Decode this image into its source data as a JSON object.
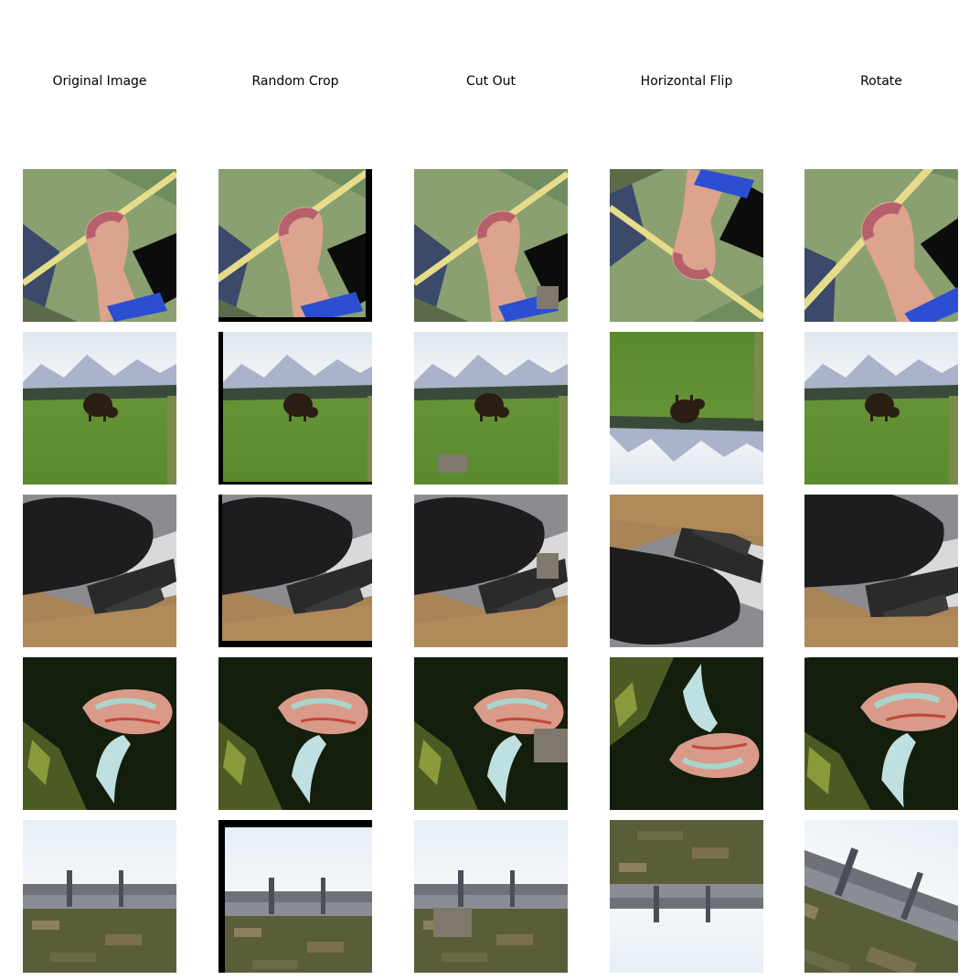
{
  "figure": {
    "columns": [
      {
        "title": "Original Image"
      },
      {
        "title": "Random Crop"
      },
      {
        "title": "Cut Out"
      },
      {
        "title": "Horizontal Flip"
      },
      {
        "title": "Rotate"
      }
    ],
    "rows": [
      {
        "subject": "hand-with-stick"
      },
      {
        "subject": "cow-in-field"
      },
      {
        "subject": "black-cat-with-keyboard"
      },
      {
        "subject": "mushroom"
      },
      {
        "subject": "city-skyline"
      }
    ],
    "colors": {
      "cutout_fill": "#7f786d",
      "background": "#ffffff",
      "text": "#000000"
    }
  }
}
